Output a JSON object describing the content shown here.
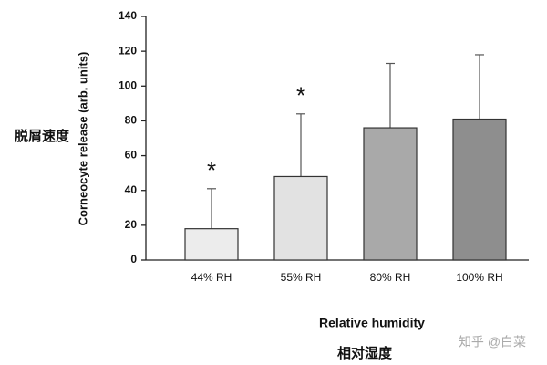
{
  "chart_data": {
    "type": "bar",
    "y_label": "Corneocyte release (arb. units)",
    "x_label": "Relative humidity",
    "y_label_zh": "脱屑速度",
    "x_label_zh": "相对湿度",
    "watermark": "知乎 @白菜",
    "categories": [
      "44% RH",
      "55% RH",
      "80% RH",
      "100% RH"
    ],
    "values": [
      18,
      48,
      76,
      81
    ],
    "errors": [
      23,
      36,
      37,
      37
    ],
    "colors": [
      "#ececec",
      "#e2e2e2",
      "#a9a9a9",
      "#8e8e8e"
    ],
    "annotations": [
      {
        "label": "*",
        "category": "44% RH"
      },
      {
        "label": "*",
        "category": "55% RH"
      }
    ],
    "ylim": [
      0,
      140
    ],
    "yticks": [
      0,
      20,
      40,
      60,
      80,
      100,
      120,
      140
    ],
    "grid": false
  }
}
